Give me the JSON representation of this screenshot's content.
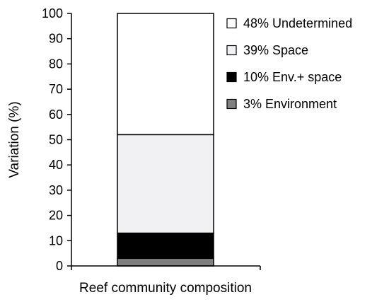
{
  "chart_data": {
    "type": "bar",
    "stacked": true,
    "title": "",
    "xlabel": "Reef community composition",
    "ylabel": "Variation (%)",
    "ylim": [
      0,
      100
    ],
    "yticks": [
      "0",
      "10",
      "20",
      "30",
      "40",
      "50",
      "60",
      "70",
      "80",
      "90",
      "100"
    ],
    "categories": [
      "Reef community composition"
    ],
    "series": [
      {
        "name": "3% Environment",
        "values": [
          3
        ],
        "color": "#808080"
      },
      {
        "name": "10% Env.+ space",
        "values": [
          10
        ],
        "color": "#000000"
      },
      {
        "name": "39% Space",
        "values": [
          39
        ],
        "color": "#f1f1f4"
      },
      {
        "name": "48% Undetermined",
        "values": [
          48
        ],
        "color": "#ffffff"
      }
    ],
    "legend": {
      "placement": "top-right",
      "order": [
        "48% Undetermined",
        "39% Space",
        "10% Env.+ space",
        "3% Environment"
      ]
    },
    "grid": false
  }
}
